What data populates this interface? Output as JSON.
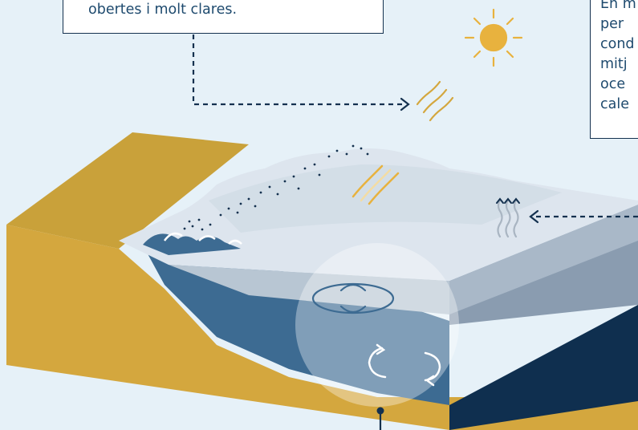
{
  "callouts": {
    "left": {
      "text": "obertes i molt clares."
    },
    "right": {
      "lines": [
        "En m",
        "per",
        "cond",
        "mitj",
        "oce",
        "cale"
      ]
    }
  },
  "colors": {
    "background": "#e6f1f8",
    "land_top": "#c9a13a",
    "land_side": "#d4a73e",
    "land_dark": "#b8902f",
    "ice_surface": "#dde5ee",
    "ice_top": "#cdd8e3",
    "ice_slab": "#a9b8c8",
    "ice_dark": "#8a9cb0",
    "deep_water": "#0f2f4f",
    "mid_water": "#3d6b92",
    "dashed_arrow": "#14314f",
    "sun": "#e8b23e",
    "vapor": "#d4a73e",
    "grey_vapor": "#a9b5c2",
    "highlight_circle": "#ffffff"
  },
  "icons": [
    "sun-icon",
    "heat-waves-icon",
    "vapor-icon",
    "rotation-arrows-icon",
    "dotted-trail"
  ]
}
